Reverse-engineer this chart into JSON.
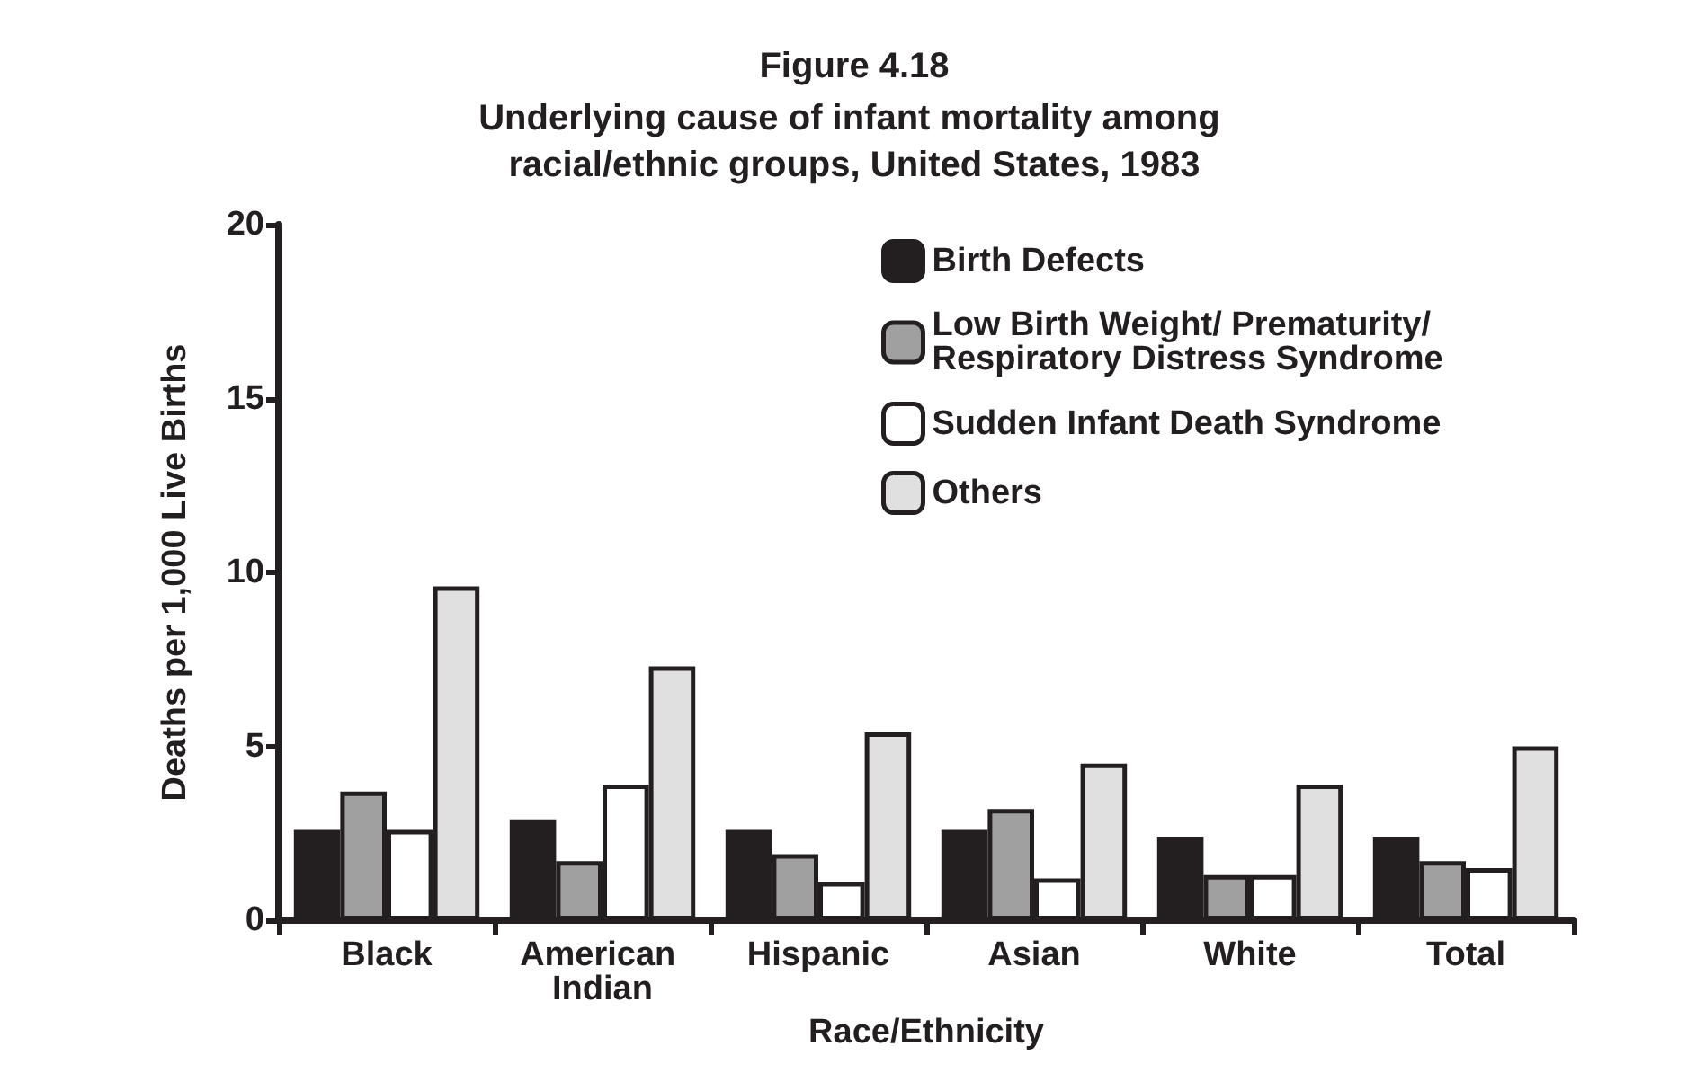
{
  "chart_data": {
    "type": "bar",
    "title": "Figure 4.18",
    "subtitle": "Underlying cause of infant mortality among racial/ethnic groups, United States, 1983",
    "xlabel": "Race/Ethnicity",
    "ylabel": "Deaths per 1,000 Live Births",
    "categories": [
      "Black",
      "American Indian",
      "Hispanic",
      "Asian",
      "White",
      "Total"
    ],
    "series": [
      {
        "name": "Birth Defects",
        "color": "#231f20",
        "values": [
          2.6,
          2.9,
          2.6,
          2.6,
          2.4,
          2.4
        ]
      },
      {
        "name": "Low Birth Weight/ Prematurity/ Respiratory Distress Syndrome",
        "color": "#a0a0a0",
        "values": [
          3.7,
          1.7,
          1.9,
          3.2,
          1.3,
          1.7
        ]
      },
      {
        "name": "Sudden Infant Death Syndrome",
        "color": "#ffffff",
        "values": [
          2.6,
          3.9,
          1.1,
          1.2,
          1.3,
          1.5
        ]
      },
      {
        "name": "Others",
        "color": "#e0e0e0",
        "values": [
          9.6,
          7.3,
          5.4,
          4.5,
          3.9,
          5.0
        ]
      }
    ],
    "ylim": [
      0,
      20
    ],
    "yticks": [
      0,
      5,
      10,
      15,
      20
    ],
    "grid": false,
    "legend": "top right"
  }
}
